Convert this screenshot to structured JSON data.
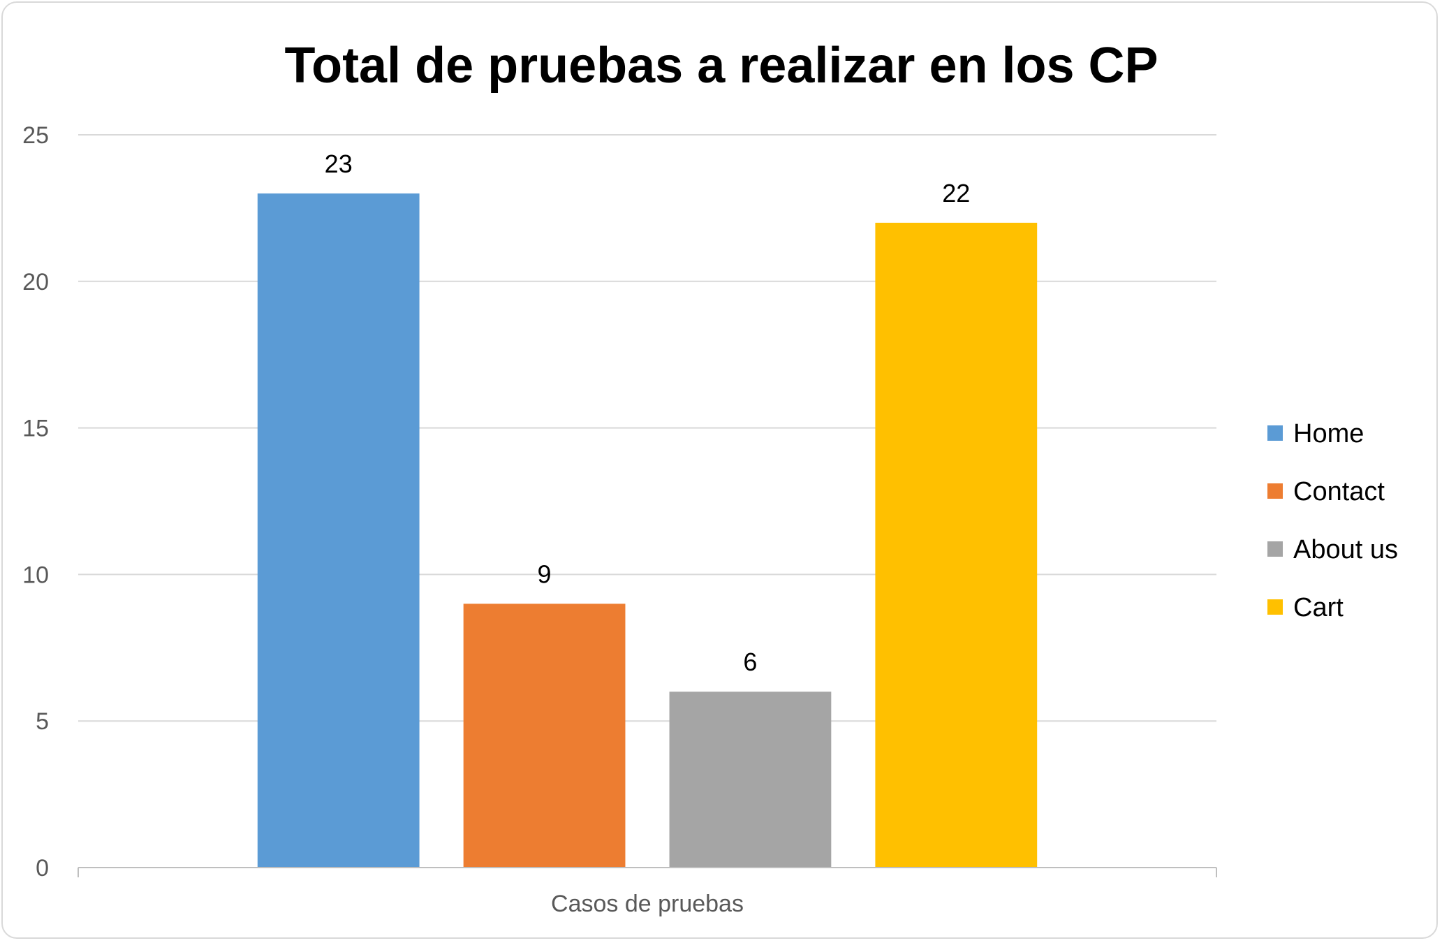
{
  "chart_data": {
    "type": "bar",
    "title": "Total de pruebas a realizar en los CP",
    "xlabel": "Casos de pruebas",
    "ylabel": "",
    "categories": [
      "Casos de pruebas"
    ],
    "series": [
      {
        "name": "Home",
        "values": [
          23
        ],
        "color": "#5b9bd5"
      },
      {
        "name": "Contact",
        "values": [
          9
        ],
        "color": "#ed7d31"
      },
      {
        "name": "About us",
        "values": [
          6
        ],
        "color": "#a5a5a5"
      },
      {
        "name": "Cart",
        "values": [
          22
        ],
        "color": "#ffc000"
      }
    ],
    "ylim": [
      0,
      25
    ],
    "yticks": [
      0,
      5,
      10,
      15,
      20,
      25
    ],
    "grid": true,
    "legend_position": "right",
    "data_labels": true
  }
}
